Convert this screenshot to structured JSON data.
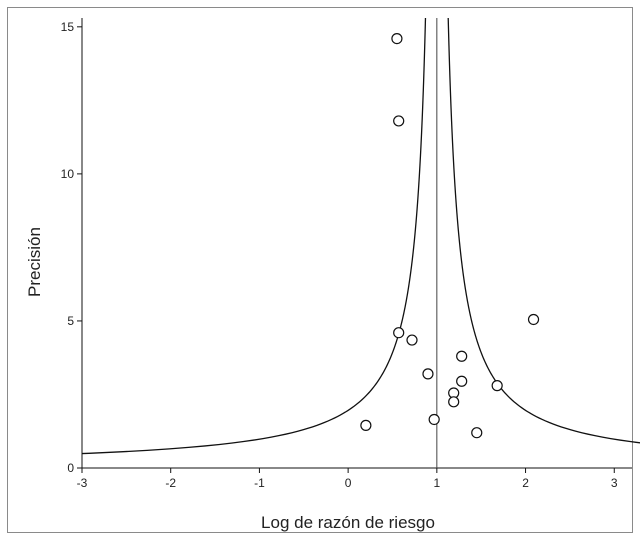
{
  "chart_data": {
    "type": "scatter",
    "title": "",
    "xlabel": "Log de razón de riesgo",
    "ylabel": "Precisión",
    "xlim": [
      -3,
      3.2
    ],
    "ylim": [
      0,
      15.3
    ],
    "xticks": [
      -3,
      -2,
      -1,
      0,
      1,
      2,
      3
    ],
    "yticks": [
      0,
      5,
      10,
      15
    ],
    "xtick_labels": [
      "-3",
      "-2",
      "-1",
      "0",
      "1",
      "2",
      "3"
    ],
    "ytick_labels": [
      "0",
      "5",
      "10",
      "15"
    ],
    "reference_line_x": 1,
    "funnel_center": 1,
    "funnel_z": 1.96,
    "funnel_ymin": 0.25,
    "grid": false,
    "legend": "none",
    "points": [
      {
        "x": 0.55,
        "y": 14.6
      },
      {
        "x": 0.57,
        "y": 11.8
      },
      {
        "x": 0.57,
        "y": 4.6
      },
      {
        "x": 0.72,
        "y": 4.35
      },
      {
        "x": 0.9,
        "y": 3.2
      },
      {
        "x": 0.97,
        "y": 1.65
      },
      {
        "x": 1.19,
        "y": 2.55
      },
      {
        "x": 1.19,
        "y": 2.25
      },
      {
        "x": 1.28,
        "y": 2.95
      },
      {
        "x": 1.28,
        "y": 3.8
      },
      {
        "x": 1.45,
        "y": 1.2
      },
      {
        "x": 1.68,
        "y": 2.8
      },
      {
        "x": 2.09,
        "y": 5.05
      },
      {
        "x": 0.2,
        "y": 1.45
      }
    ],
    "colors": {
      "marker": "#111111",
      "line": "#111111",
      "axis": "#111111"
    }
  }
}
